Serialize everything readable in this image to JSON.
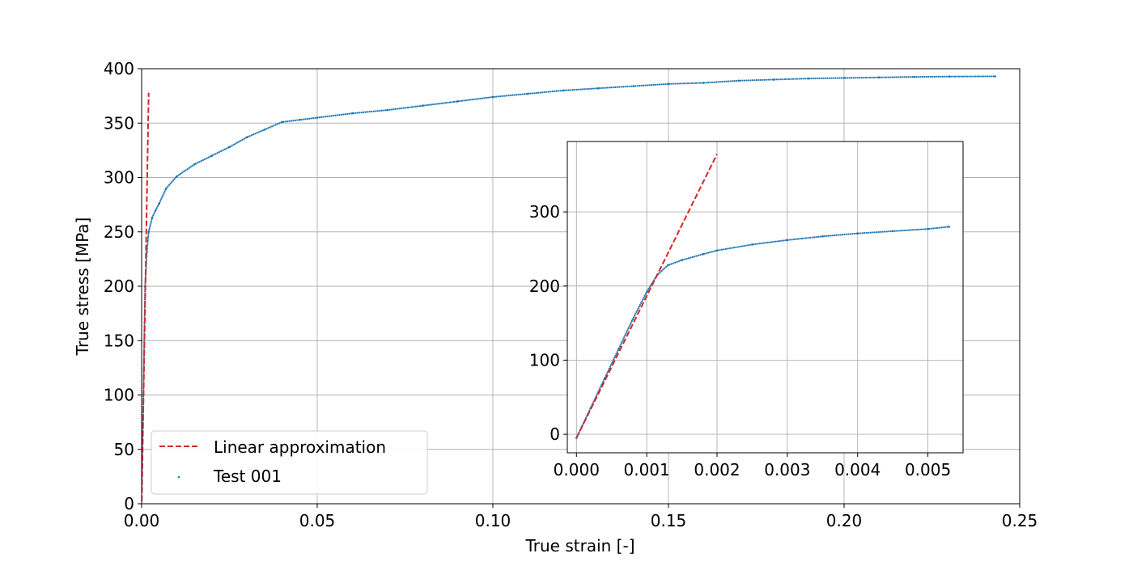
{
  "chart_data": [
    {
      "id": "main",
      "type": "scatter",
      "xlabel": "True strain [-]",
      "ylabel": "True stress [MPa]",
      "xlim": [
        0.0,
        0.25
      ],
      "ylim": [
        0,
        400
      ],
      "xticks": [
        0.0,
        0.05,
        0.1,
        0.15,
        0.2,
        0.25
      ],
      "xtick_labels": [
        "0.00",
        "0.05",
        "0.10",
        "0.15",
        "0.20",
        "0.25"
      ],
      "yticks": [
        0,
        50,
        100,
        150,
        200,
        250,
        300,
        350,
        400
      ],
      "ytick_labels": [
        "0",
        "50",
        "100",
        "150",
        "200",
        "250",
        "300",
        "350",
        "400"
      ],
      "grid": true,
      "legend": {
        "position": "lower-left",
        "entries": [
          "Linear approximation",
          "Test 001"
        ]
      },
      "series": [
        {
          "name": "Linear approximation",
          "style": "dashed-line",
          "color": "#d62728",
          "x": [
            0.0,
            0.002
          ],
          "y": [
            -5,
            378
          ]
        },
        {
          "name": "Test 001",
          "style": "dots",
          "color": "#1f77b4",
          "x": [
            0.0,
            0.0005,
            0.001,
            0.0015,
            0.002,
            0.003,
            0.004,
            0.005,
            0.007,
            0.01,
            0.015,
            0.02,
            0.025,
            0.03,
            0.035,
            0.04,
            0.045,
            0.05,
            0.06,
            0.07,
            0.08,
            0.09,
            0.1,
            0.11,
            0.12,
            0.13,
            0.14,
            0.15,
            0.16,
            0.17,
            0.18,
            0.19,
            0.2,
            0.21,
            0.22,
            0.23,
            0.243
          ],
          "y": [
            15,
            100,
            200,
            232,
            250,
            263,
            270,
            276,
            290,
            301,
            312,
            320,
            328,
            337,
            344,
            351,
            353,
            355,
            359,
            362,
            366,
            370,
            374,
            377,
            380,
            382,
            384,
            386,
            387,
            389,
            390,
            391,
            391.5,
            392,
            392.5,
            392.8,
            393
          ]
        }
      ]
    },
    {
      "id": "inset",
      "type": "scatter",
      "xlabel": "",
      "ylabel": "",
      "xlim": [
        -0.00013,
        0.0055
      ],
      "ylim": [
        -25,
        395
      ],
      "xticks": [
        0.0,
        0.001,
        0.002,
        0.003,
        0.004,
        0.005
      ],
      "xtick_labels": [
        "0.000",
        "0.001",
        "0.002",
        "0.003",
        "0.004",
        "0.005"
      ],
      "yticks": [
        0,
        100,
        200,
        300
      ],
      "ytick_labels": [
        "0",
        "100",
        "200",
        "300"
      ],
      "grid": true,
      "series": [
        {
          "name": "Linear approximation",
          "style": "dashed-line",
          "color": "#d62728",
          "x": [
            0.0,
            0.002
          ],
          "y": [
            -5,
            378
          ]
        },
        {
          "name": "Test 001",
          "style": "dots",
          "color": "#1f77b4",
          "x": [
            0.0,
            0.0002,
            0.0004,
            0.0006,
            0.0008,
            0.001,
            0.00115,
            0.0013,
            0.0015,
            0.0018,
            0.002,
            0.0025,
            0.003,
            0.0035,
            0.004,
            0.0045,
            0.005,
            0.0053
          ],
          "y": [
            -5,
            35,
            75,
            115,
            155,
            192,
            215,
            228,
            235,
            243,
            248,
            256,
            262,
            267,
            271,
            274,
            277,
            280
          ]
        }
      ]
    }
  ]
}
